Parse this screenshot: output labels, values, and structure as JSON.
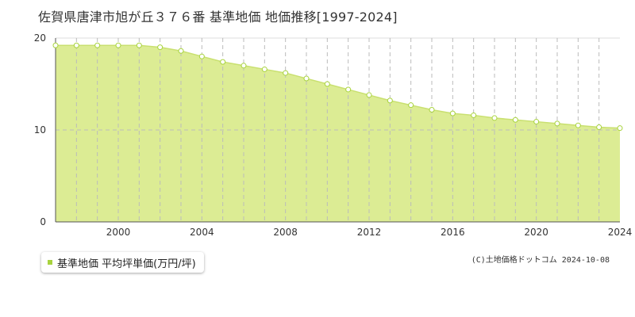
{
  "title": "佐賀県唐津市旭が丘３７６番 基準地価 地価推移[1997-2024]",
  "copyright": "(C)土地価格ドットコム 2024-10-08",
  "colors": {
    "fill": "#dcec94",
    "line": "#c9e070",
    "marker": "#a8d33e",
    "grid": "#bbbbbb"
  },
  "chart_data": {
    "type": "area",
    "title": "佐賀県唐津市旭が丘３７６番 基準地価 地価推移[1997-2024]",
    "xlabel": "",
    "ylabel": "",
    "xlim": [
      1997,
      2024
    ],
    "ylim": [
      0,
      20
    ],
    "y_ticks": [
      "0",
      "10",
      "20"
    ],
    "x_ticks": [
      "2000",
      "2004",
      "2008",
      "2012",
      "2016",
      "2020",
      "2024"
    ],
    "grid": true,
    "legend_position": "bottom-left",
    "series": [
      {
        "name": "基準地価 平均坪単価(万円/坪)",
        "x": [
          1997,
          1998,
          1999,
          2000,
          2001,
          2002,
          2003,
          2004,
          2005,
          2006,
          2007,
          2008,
          2009,
          2010,
          2011,
          2012,
          2013,
          2014,
          2015,
          2016,
          2017,
          2018,
          2019,
          2020,
          2021,
          2022,
          2023,
          2024
        ],
        "y": [
          19.2,
          19.2,
          19.2,
          19.2,
          19.2,
          19.0,
          18.6,
          18.0,
          17.4,
          17.0,
          16.6,
          16.2,
          15.6,
          15.0,
          14.4,
          13.8,
          13.2,
          12.7,
          12.2,
          11.8,
          11.6,
          11.3,
          11.1,
          10.9,
          10.7,
          10.5,
          10.3,
          10.2
        ]
      }
    ]
  }
}
